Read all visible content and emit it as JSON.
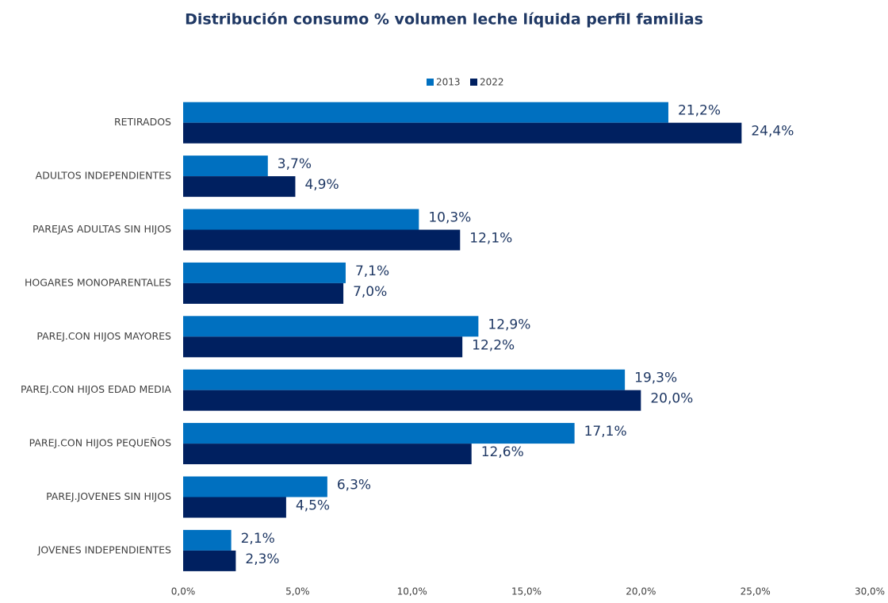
{
  "chart_data": {
    "type": "hbar",
    "title": "Distribución consumo % volumen leche líquida perfil familias",
    "categories": [
      "RETIRADOS",
      "ADULTOS INDEPENDIENTES",
      "PAREJAS ADULTAS SIN HIJOS",
      "HOGARES MONOPARENTALES",
      "PAREJ.CON HIJOS MAYORES",
      "PAREJ.CON HIJOS EDAD MEDIA",
      "PAREJ.CON HIJOS PEQUEÑOS",
      "PAREJ.JOVENES SIN HIJOS",
      "JOVENES INDEPENDIENTES"
    ],
    "series": [
      {
        "name": "2013",
        "color": "#0070c0",
        "values": [
          21.2,
          3.7,
          10.3,
          7.1,
          12.9,
          19.3,
          17.1,
          6.3,
          2.1
        ],
        "value_labels": [
          "21,2%",
          "3,7%",
          "10,3%",
          "7,1%",
          "12,9%",
          "19,3%",
          "17,1%",
          "6,3%",
          "2,1%"
        ]
      },
      {
        "name": "2022",
        "color": "#002060",
        "values": [
          24.4,
          4.9,
          12.1,
          7.0,
          12.2,
          20.0,
          12.6,
          4.5,
          2.3
        ],
        "value_labels": [
          "24,4%",
          "4,9%",
          "12,1%",
          "7,0%",
          "12,2%",
          "20,0%",
          "12,6%",
          "4,5%",
          "2,3%"
        ]
      }
    ],
    "xlim": [
      0,
      30
    ],
    "xticks": [
      {
        "value": 0,
        "label": "0,0%"
      },
      {
        "value": 5,
        "label": "5,0%"
      },
      {
        "value": 10,
        "label": "10,0%"
      },
      {
        "value": 15,
        "label": "15,0%"
      },
      {
        "value": 20,
        "label": "20,0%"
      },
      {
        "value": 25,
        "label": "25,0%"
      },
      {
        "value": 30,
        "label": "30,0%"
      }
    ],
    "legend": "top"
  }
}
